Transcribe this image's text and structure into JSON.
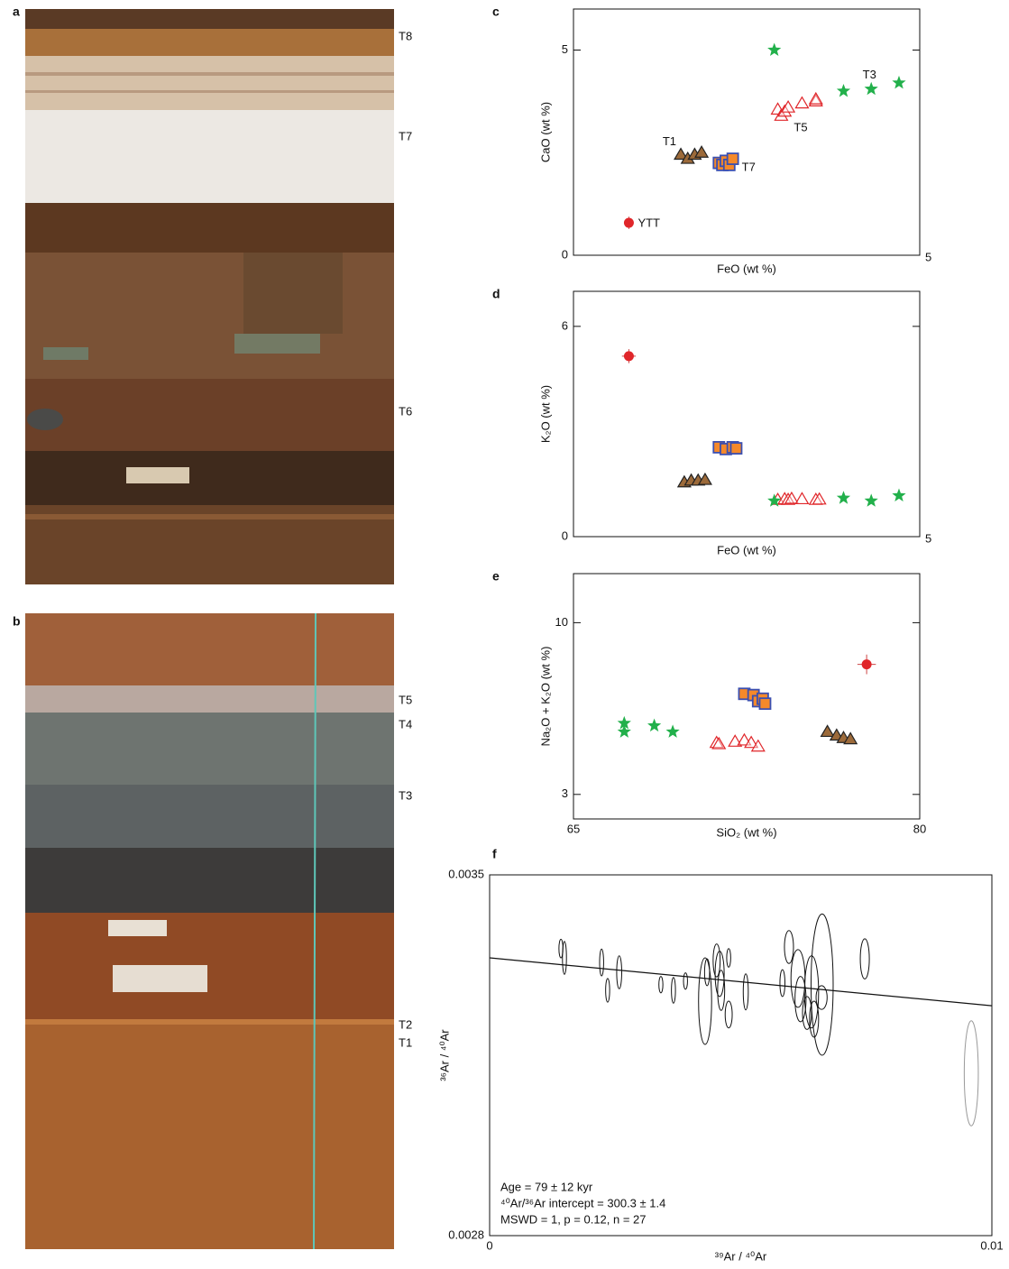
{
  "photos": [
    {
      "panel": "a",
      "layers": [
        "T8",
        "T7",
        "T6"
      ]
    },
    {
      "panel": "b",
      "layers": [
        "T5",
        "T4",
        "T3",
        "T2",
        "T1"
      ]
    }
  ],
  "chart_data": [
    {
      "type": "scatter",
      "panel": "c",
      "xlabel": "FeO (wt %)",
      "ylabel": "CaO (wt %)",
      "xlim": [
        0,
        5
      ],
      "ylim": [
        0,
        6
      ],
      "xticks": [
        5
      ],
      "yticks": [
        0,
        5
      ],
      "series": [
        {
          "name": "YTT",
          "marker": "circle",
          "color": "#e0262a",
          "x": [
            0.8
          ],
          "values": [
            0.79
          ],
          "yerr": [
            0.15
          ]
        },
        {
          "name": "T1",
          "marker": "triangle",
          "color": "#9c6a3a",
          "x": [
            1.55,
            1.65,
            1.75,
            1.85
          ],
          "values": [
            2.45,
            2.35,
            2.45,
            2.5
          ]
        },
        {
          "name": "T7",
          "marker": "square",
          "color": "#f5892a",
          "x": [
            2.1,
            2.15,
            2.2,
            2.25,
            2.3
          ],
          "values": [
            2.25,
            2.2,
            2.3,
            2.2,
            2.35
          ]
        },
        {
          "name": "T5",
          "marker": "open-triangle",
          "color": "#e0262a",
          "x": [
            2.95,
            3.0,
            3.05,
            3.1,
            3.3,
            3.5,
            3.5
          ],
          "values": [
            3.55,
            3.4,
            3.5,
            3.6,
            3.7,
            3.75,
            3.8
          ]
        },
        {
          "name": "T3",
          "marker": "star",
          "color": "#22b04b",
          "x": [
            2.9,
            3.9,
            4.3,
            4.7
          ],
          "values": [
            5.0,
            4.0,
            4.05,
            4.2
          ]
        }
      ]
    },
    {
      "type": "scatter",
      "panel": "d",
      "xlabel": "FeO (wt %)",
      "ylabel": "K₂O (wt %)",
      "xlim": [
        0,
        5
      ],
      "ylim": [
        0,
        7
      ],
      "xticks": [
        5
      ],
      "yticks": [
        0,
        6
      ],
      "series": [
        {
          "marker": "circle",
          "color": "#e0262a",
          "x": [
            0.8
          ],
          "values": [
            5.15
          ],
          "xerr": [
            0.1
          ],
          "yerr": [
            0.2
          ]
        },
        {
          "marker": "triangle",
          "color": "#9c6a3a",
          "x": [
            1.6,
            1.7,
            1.8,
            1.9
          ],
          "values": [
            1.55,
            1.6,
            1.6,
            1.62
          ]
        },
        {
          "marker": "square",
          "color": "#f5892a",
          "x": [
            2.1,
            2.2,
            2.3,
            2.35
          ],
          "values": [
            2.55,
            2.5,
            2.55,
            2.52
          ]
        },
        {
          "marker": "open-triangle",
          "color": "#e0262a",
          "x": [
            2.95,
            3.05,
            3.1,
            3.15,
            3.3,
            3.5,
            3.55
          ],
          "values": [
            1.05,
            1.07,
            1.05,
            1.08,
            1.07,
            1.05,
            1.06
          ]
        },
        {
          "marker": "star",
          "color": "#22b04b",
          "x": [
            2.9,
            3.9,
            4.3,
            4.7
          ],
          "values": [
            1.02,
            1.1,
            1.02,
            1.17
          ]
        }
      ]
    },
    {
      "type": "scatter",
      "panel": "e",
      "xlabel": "SiO₂ (wt %)",
      "ylabel": "Na₂O + K₂O (wt %)",
      "xlim": [
        65,
        80
      ],
      "ylim": [
        2,
        12
      ],
      "xticks": [
        65,
        80
      ],
      "yticks": [
        3,
        10
      ],
      "series": [
        {
          "marker": "circle",
          "color": "#e0262a",
          "x": [
            77.7
          ],
          "values": [
            8.3
          ],
          "xerr": [
            0.4
          ],
          "yerr": [
            0.4
          ]
        },
        {
          "marker": "triangle",
          "color": "#9c6a3a",
          "x": [
            76,
            76.4,
            76.7,
            77
          ],
          "values": [
            5.55,
            5.4,
            5.3,
            5.25
          ]
        },
        {
          "marker": "square",
          "color": "#f5892a",
          "x": [
            72.4,
            72.8,
            73.0,
            73.2,
            73.3
          ],
          "values": [
            7.1,
            7.05,
            6.8,
            6.9,
            6.7
          ]
        },
        {
          "marker": "open-triangle",
          "color": "#e0262a",
          "x": [
            71.2,
            71.3,
            72.0,
            72.4,
            72.7,
            73.0
          ],
          "values": [
            5.1,
            5.05,
            5.15,
            5.2,
            5.1,
            4.95
          ]
        },
        {
          "marker": "star",
          "color": "#22b04b",
          "x": [
            67.2,
            67.2,
            68.5,
            69.3
          ],
          "values": [
            5.9,
            5.55,
            5.8,
            5.55
          ]
        }
      ]
    },
    {
      "type": "isochron",
      "panel": "f",
      "xlabel": "³⁹Ar / ⁴⁰Ar",
      "ylabel": "³⁶Ar / ⁴⁰Ar",
      "xlim": [
        0,
        0.01
      ],
      "ylim": [
        0.0028,
        0.0035
      ],
      "xticks": [
        0,
        0.01
      ],
      "yticks": [
        0.0028,
        0.0035
      ],
      "series": [
        {
          "marker": "ellipse",
          "color": "#111111",
          "x": [
            0.00142,
            0.00149,
            0.00223,
            0.00235,
            0.00258,
            0.00341,
            0.00366,
            0.0039,
            0.00429,
            0.00452,
            0.00458,
            0.00461,
            0.00476,
            0.00476,
            0.0051,
            0.00596,
            0.00614,
            0.00619,
            0.00632,
            0.00641,
            0.00646,
            0.00661,
            0.00662,
            0.00747,
            0.00433,
            0.00583
          ],
          "values": [
            0.003357,
            0.003339,
            0.00333,
            0.003276,
            0.003311,
            0.003287,
            0.003276,
            0.003294,
            0.003255,
            0.003334,
            0.003308,
            0.003276,
            0.003229,
            0.003339,
            0.003273,
            0.00336,
            0.003299,
            0.003259,
            0.003232,
            0.003273,
            0.00322,
            0.003262,
            0.003287,
            0.003337,
            0.003311,
            0.00329
          ],
          "xerr": [
            4e-05,
            4e-05,
            4e-05,
            4e-05,
            5e-05,
            4e-05,
            4e-05,
            4e-05,
            0.00013,
            7e-05,
            9e-05,
            7e-05,
            7e-05,
            4e-05,
            5e-05,
            9e-05,
            0.00014,
            0.00011,
            9e-05,
            0.00014,
            9e-05,
            0.00011,
            0.00022,
            9e-05,
            5e-05,
            5e-05
          ],
          "yerr": [
            1.8e-05,
            3.2e-05,
            2.6e-05,
            2.3e-05,
            3.2e-05,
            1.6e-05,
            2.5e-05,
            1.6e-05,
            8.4e-05,
            3.2e-05,
            4.4e-05,
            3.9e-05,
            2.6e-05,
            1.8e-05,
            3.5e-05,
            3.2e-05,
            5.6e-05,
            4.4e-05,
            3.2e-05,
            7e-05,
            3.5e-05,
            2.3e-05,
            0.000137,
            3.9e-05,
            2.6e-05,
            2.6e-05
          ]
        },
        {
          "marker": "ellipse",
          "color": "#999999",
          "x": [
            0.00959
          ],
          "values": [
            0.003115
          ],
          "xerr": [
            0.00014
          ],
          "yerr": [
            0.000102
          ]
        }
      ],
      "fit": {
        "color": "#111111",
        "x": [
          0,
          0.01
        ],
        "values": [
          0.003339,
          0.003246
        ]
      },
      "annotations": [
        "Age = 79 ± 12 kyr",
        "⁴⁰Ar/³⁶Ar intercept = 300.3 ± 1.4",
        "MSWD = 1, p = 0.12, n = 27"
      ]
    }
  ]
}
